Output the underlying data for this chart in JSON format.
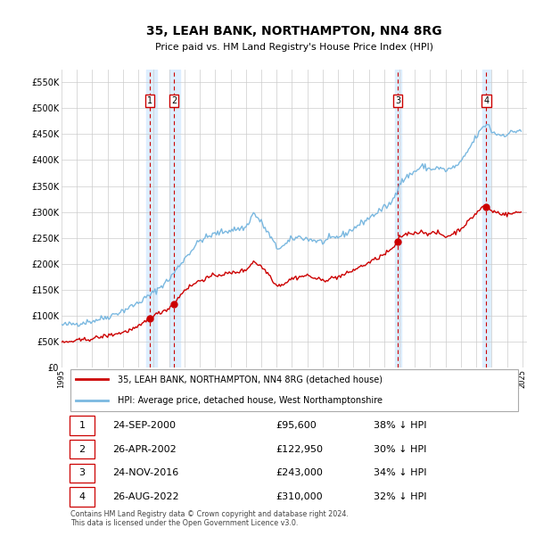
{
  "title": "35, LEAH BANK, NORTHAMPTON, NN4 8RG",
  "subtitle": "Price paid vs. HM Land Registry's House Price Index (HPI)",
  "ytick_values": [
    0,
    50000,
    100000,
    150000,
    200000,
    250000,
    300000,
    350000,
    400000,
    450000,
    500000,
    550000
  ],
  "ylim": [
    0,
    575000
  ],
  "xlim_start": 1995.0,
  "xlim_end": 2025.3,
  "background_color": "#ffffff",
  "grid_color": "#cccccc",
  "hpi_color": "#7ab8e0",
  "price_color": "#cc0000",
  "vspan_color": "#ddeeff",
  "vline_color": "#cc0000",
  "transactions": [
    {
      "id": "1",
      "date_num": 2000.73,
      "price": 95600
    },
    {
      "id": "2",
      "date_num": 2002.32,
      "price": 122950
    },
    {
      "id": "3",
      "date_num": 2016.9,
      "price": 243000
    },
    {
      "id": "4",
      "date_num": 2022.65,
      "price": 310000
    }
  ],
  "vspan_pairs": [
    [
      2000.5,
      2001.2
    ],
    [
      2002.0,
      2002.7
    ],
    [
      2016.7,
      2017.1
    ],
    [
      2022.4,
      2022.9
    ]
  ],
  "legend_entries": [
    {
      "label": "35, LEAH BANK, NORTHAMPTON, NN4 8RG (detached house)",
      "color": "#cc0000"
    },
    {
      "label": "HPI: Average price, detached house, West Northamptonshire",
      "color": "#7ab8e0"
    }
  ],
  "table_rows": [
    {
      "id": "1",
      "date": "24-SEP-2000",
      "price": "£95,600",
      "pct": "38% ↓ HPI"
    },
    {
      "id": "2",
      "date": "26-APR-2002",
      "price": "£122,950",
      "pct": "30% ↓ HPI"
    },
    {
      "id": "3",
      "date": "24-NOV-2016",
      "price": "£243,000",
      "pct": "34% ↓ HPI"
    },
    {
      "id": "4",
      "date": "26-AUG-2022",
      "price": "£310,000",
      "pct": "32% ↓ HPI"
    }
  ],
  "footnote": "Contains HM Land Registry data © Crown copyright and database right 2024.\nThis data is licensed under the Open Government Licence v3.0."
}
